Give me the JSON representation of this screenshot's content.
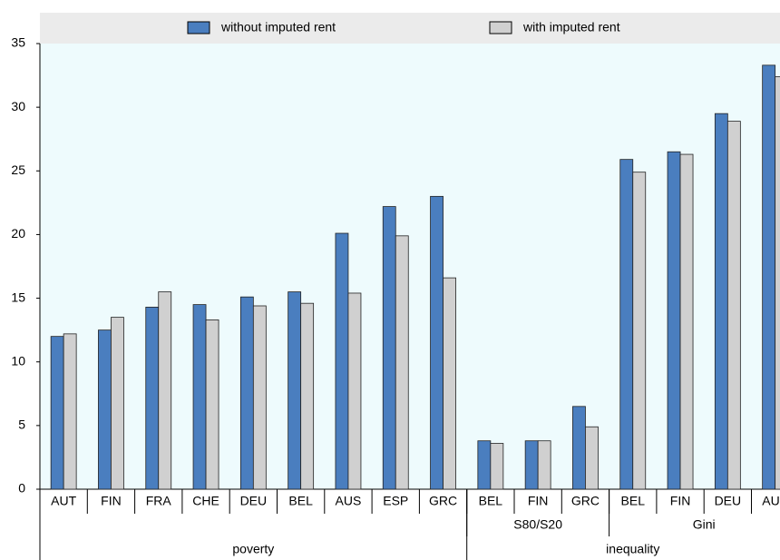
{
  "chart_data": {
    "type": "bar",
    "categories": [
      "AUT",
      "FIN",
      "FRA",
      "CHE",
      "DEU",
      "BEL",
      "AUS",
      "ESP",
      "GRC",
      "BEL",
      "FIN",
      "GRC",
      "BEL",
      "FIN",
      "DEU",
      "AUS"
    ],
    "series": [
      {
        "name": "without imputed rent",
        "color": "#4a7ebf",
        "values": [
          12.0,
          12.5,
          14.3,
          14.5,
          15.1,
          15.5,
          20.1,
          22.2,
          23.0,
          3.8,
          3.8,
          6.5,
          25.9,
          26.5,
          29.5,
          33.3
        ]
      },
      {
        "name": "with imputed rent",
        "color": "#d0d0d0",
        "values": [
          12.2,
          13.5,
          15.5,
          13.3,
          14.4,
          14.6,
          15.4,
          19.9,
          16.6,
          3.6,
          3.8,
          4.9,
          24.9,
          26.3,
          28.9,
          32.4
        ]
      }
    ],
    "subgroups": [
      {
        "label": "S80/S20",
        "start": 9,
        "end": 11
      },
      {
        "label": "Gini",
        "start": 12,
        "end": 15
      }
    ],
    "groups": [
      {
        "label": "poverty",
        "start": 0,
        "end": 8
      },
      {
        "label": "inequality",
        "start": 9,
        "end": 15
      }
    ],
    "ylim": [
      0,
      35
    ],
    "yticks": [
      0,
      5,
      10,
      15,
      20,
      25,
      30,
      35
    ],
    "grid": false,
    "legend": "top"
  }
}
